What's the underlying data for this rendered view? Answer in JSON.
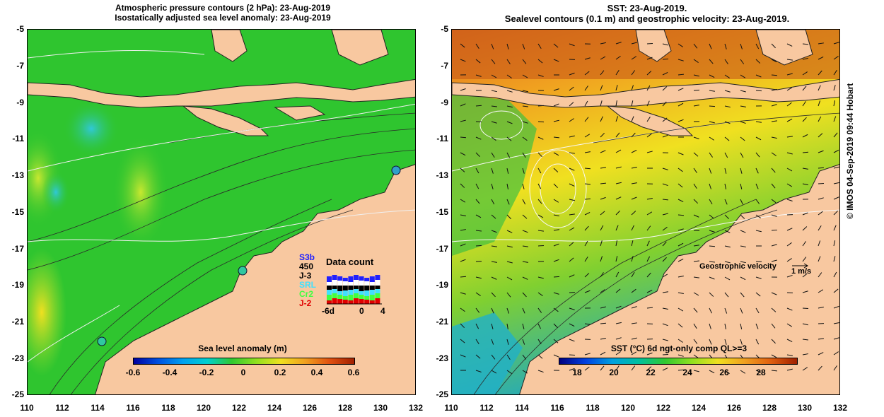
{
  "left_title": {
    "line1": "Atmospheric pressure contours (2 hPa): 23-Aug-2019",
    "line2": "Isostatically adjusted sea level anomaly: 23-Aug-2019"
  },
  "right_title": {
    "line1": "SST: 23-Aug-2019.",
    "line2": "Sealevel contours (0.1 m) and geostrophic velocity: 23-Aug-2019."
  },
  "y_ticks": [
    "-5",
    "-7",
    "-9",
    "-11",
    "-13",
    "-15",
    "-17",
    "-19",
    "-21",
    "-23",
    "-25"
  ],
  "x_ticks": [
    "110",
    "112",
    "114",
    "116",
    "118",
    "120",
    "122",
    "124",
    "126",
    "128",
    "130",
    "132"
  ],
  "left_colorbar": {
    "title": "Sea level anomaly (m)",
    "labels": [
      "-0.6",
      "-0.4",
      "-0.2",
      "0",
      "0.2",
      "0.4",
      "0.6"
    ]
  },
  "right_colorbar": {
    "title": "SST (°C) 6d ngt-only comp QL>=3",
    "labels": [
      "18",
      "20",
      "22",
      "24",
      "26",
      "28"
    ]
  },
  "data_count_legend": {
    "title": "Data count",
    "missions": [
      {
        "name": "S3b",
        "color": "#2020ff"
      },
      {
        "name": "450",
        "color": "#000000"
      },
      {
        "name": "J-3",
        "color": "#000000"
      },
      {
        "name": "SRL",
        "color": "#40e0ff"
      },
      {
        "name": "Cr2",
        "color": "#40ff40"
      },
      {
        "name": "J-2",
        "color": "#e00000"
      }
    ],
    "axis_labels": [
      "-6d",
      "0",
      "4"
    ]
  },
  "geostrophic": {
    "label": "Geostrophic velocity",
    "unit": "1 m/s"
  },
  "credit": "© IMOS 04-Sep-2019 09:44 Hobart",
  "colors": {
    "land": "#f8c8a0",
    "ocean_left": "#2fc52f",
    "ocean_right": "#f0a020"
  }
}
